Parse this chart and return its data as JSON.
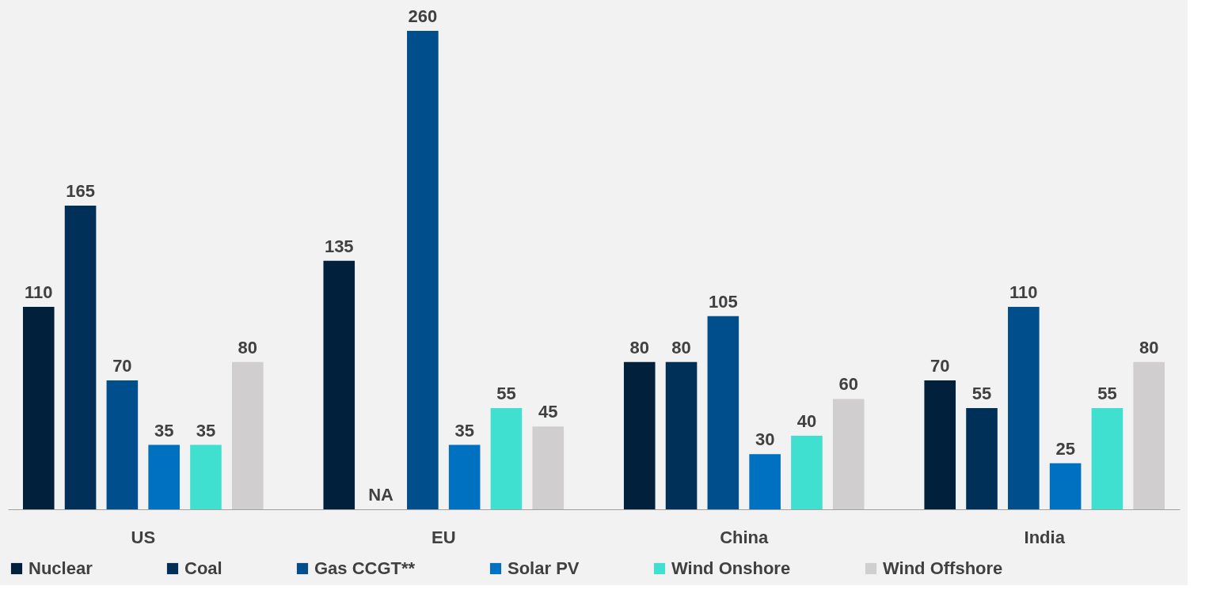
{
  "chart_data": {
    "type": "bar",
    "categories": [
      "US",
      "EU",
      "China",
      "India"
    ],
    "series": [
      {
        "name": "Nuclear",
        "color": "#00203b",
        "values": [
          110,
          135,
          80,
          70
        ],
        "value_labels": [
          "110",
          "135",
          "80",
          "70"
        ]
      },
      {
        "name": "Coal",
        "color": "#002f57",
        "values": [
          165,
          null,
          80,
          55
        ],
        "value_labels": [
          "165",
          "NA",
          "80",
          "55"
        ]
      },
      {
        "name": "Gas CCGT**",
        "color": "#004f8c",
        "values": [
          70,
          260,
          105,
          110
        ],
        "value_labels": [
          "70",
          "260",
          "105",
          "110"
        ]
      },
      {
        "name": "Solar PV",
        "color": "#0070c0",
        "values": [
          35,
          35,
          30,
          25
        ],
        "value_labels": [
          "35",
          "35",
          "30",
          "25"
        ]
      },
      {
        "name": "Wind Onshore",
        "color": "#40e0d0",
        "values": [
          35,
          55,
          40,
          55
        ],
        "value_labels": [
          "35",
          "55",
          "40",
          "55"
        ]
      },
      {
        "name": "Wind Offshore",
        "color": "#d0cece",
        "values": [
          80,
          45,
          60,
          80
        ],
        "value_labels": [
          "80",
          "45",
          "60",
          "80"
        ]
      }
    ],
    "legend": "bottom",
    "grid": false
  }
}
